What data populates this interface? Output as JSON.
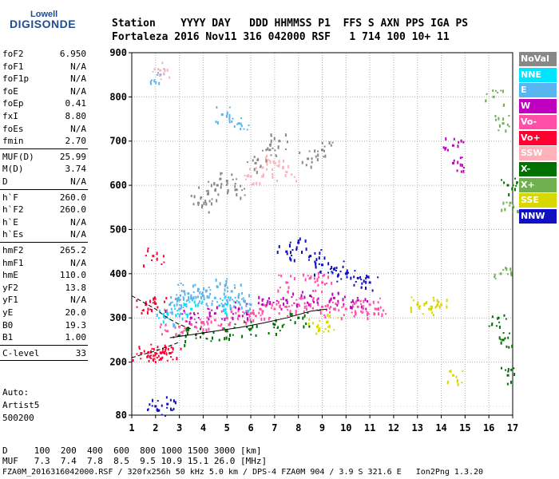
{
  "logo": {
    "line1": "Lowell",
    "line2": "DIGISONDE"
  },
  "header": {
    "line1": "Station    YYYY DAY   DDD HHMMSS P1  FFS S AXN PPS IGA PS",
    "line2": "Fortaleza 2016 Nov11 316 042000 RSF   1 714 100 10+ 11"
  },
  "params": {
    "group1": [
      [
        "foF2",
        "6.950"
      ],
      [
        "foF1",
        "N/A"
      ],
      [
        "foF1p",
        "N/A"
      ],
      [
        "foE",
        "N/A"
      ],
      [
        "foEp",
        "0.41"
      ],
      [
        "fxI",
        "8.80"
      ],
      [
        "foEs",
        "N/A"
      ],
      [
        "fmin",
        "2.70"
      ]
    ],
    "group2": [
      [
        "MUF(D)",
        "25.99"
      ],
      [
        "M(D)",
        "3.74"
      ],
      [
        "D",
        "N/A"
      ]
    ],
    "group3": [
      [
        "h`F",
        "260.0"
      ],
      [
        "h`F2",
        "260.0"
      ],
      [
        "h`E",
        "N/A"
      ],
      [
        "h`Es",
        "N/A"
      ]
    ],
    "group4": [
      [
        "hmF2",
        "265.2"
      ],
      [
        "hmF1",
        "N/A"
      ],
      [
        "hmE",
        "110.0"
      ],
      [
        "yF2",
        "13.8"
      ],
      [
        "yF1",
        "N/A"
      ],
      [
        "yE",
        "20.0"
      ],
      [
        "B0",
        "19.3"
      ],
      [
        "B1",
        "1.00"
      ]
    ],
    "group5": [
      [
        "C-level",
        "33"
      ]
    ]
  },
  "auto": {
    "line1": "Auto:",
    "line2": "Artist5",
    "line3": "500200"
  },
  "legend": [
    {
      "label": "NoVal",
      "bg": "#888888",
      "fg": "#ffffff"
    },
    {
      "label": "NNE",
      "bg": "#00e5ff",
      "fg": "#ffffff"
    },
    {
      "label": "E",
      "bg": "#5ab4f0",
      "fg": "#ffffff"
    },
    {
      "label": "W",
      "bg": "#c000c0",
      "fg": "#ffffff"
    },
    {
      "label": "Vo-",
      "bg": "#ff4fa8",
      "fg": "#ffffff"
    },
    {
      "label": "Vo+",
      "bg": "#ff0030",
      "fg": "#ffffff"
    },
    {
      "label": "SSW",
      "bg": "#ffb0b8",
      "fg": "#ffffff"
    },
    {
      "label": "X-",
      "bg": "#007000",
      "fg": "#ffffff"
    },
    {
      "label": "X+",
      "bg": "#70b050",
      "fg": "#ffffff"
    },
    {
      "label": "SSE",
      "bg": "#d8d800",
      "fg": "#ffffff"
    },
    {
      "label": "NNW",
      "bg": "#1010c0",
      "fg": "#ffffff"
    }
  ],
  "footer": {
    "line1": "D     100  200  400  600  800 1000 1500 3000 [km]",
    "line2": "MUF   7.3  7.4  7.8  8.5  9.5 10.9 15.1 26.0 [MHz]",
    "line3": "FZA0M_2016316042000.RSF / 320fx256h 50 kHz 5.0 km / DPS-4 FZA0M 904 / 3.9 S 321.6 E   Ion2Png 1.3.20"
  },
  "chart_data": {
    "type": "scatter",
    "title": "",
    "xlabel": "",
    "ylabel": "",
    "xlim": [
      1,
      17
    ],
    "ylim": [
      80,
      900
    ],
    "x_ticks": [
      1,
      2,
      3,
      4,
      5,
      6,
      7,
      8,
      9,
      10,
      11,
      12,
      13,
      14,
      15,
      16,
      17
    ],
    "y_ticks": [
      80,
      200,
      300,
      400,
      500,
      600,
      700,
      800,
      900
    ],
    "grid": true,
    "legend_position": "right",
    "series": [
      {
        "name": "E",
        "color": "#5ab4f0",
        "points": [
          [
            2.6,
            330
          ],
          [
            3.0,
            340
          ],
          [
            3.5,
            345
          ],
          [
            4.0,
            350
          ],
          [
            4.5,
            345
          ],
          [
            5.0,
            340
          ],
          [
            5.5,
            335
          ],
          [
            6.0,
            330
          ],
          [
            3.2,
            360
          ],
          [
            3.8,
            365
          ],
          [
            4.6,
            370
          ],
          [
            5.2,
            360
          ],
          [
            2.4,
            300
          ],
          [
            3.0,
            320
          ],
          [
            2.2,
            850
          ],
          [
            4.8,
            760
          ],
          [
            5.5,
            740
          ]
        ]
      },
      {
        "name": "Vo-",
        "color": "#ff4fa8",
        "points": [
          [
            2.5,
            270
          ],
          [
            3.0,
            280
          ],
          [
            3.5,
            285
          ],
          [
            4.0,
            290
          ],
          [
            4.5,
            295
          ],
          [
            5.0,
            300
          ],
          [
            5.5,
            305
          ],
          [
            6.0,
            310
          ],
          [
            6.5,
            315
          ],
          [
            7.0,
            320
          ],
          [
            7.5,
            325
          ],
          [
            8.0,
            330
          ],
          [
            8.5,
            330
          ],
          [
            9.0,
            325
          ],
          [
            9.5,
            320
          ],
          [
            10.0,
            320
          ],
          [
            10.5,
            325
          ],
          [
            11.0,
            330
          ],
          [
            11.3,
            320
          ],
          [
            7.5,
            380
          ],
          [
            8.5,
            390
          ],
          [
            9.0,
            380
          ]
        ]
      },
      {
        "name": "Vo+",
        "color": "#ff0030",
        "points": [
          [
            1.4,
            220
          ],
          [
            1.7,
            222
          ],
          [
            2.0,
            220
          ],
          [
            2.3,
            222
          ],
          [
            2.6,
            220
          ],
          [
            1.6,
            330
          ],
          [
            2.0,
            332
          ],
          [
            1.9,
            440
          ]
        ]
      },
      {
        "name": "W",
        "color": "#c000c0",
        "points": [
          [
            3.5,
            300
          ],
          [
            4.5,
            310
          ],
          [
            5.5,
            320
          ],
          [
            6.5,
            330
          ],
          [
            7.5,
            340
          ],
          [
            8.5,
            350
          ],
          [
            9.5,
            345
          ],
          [
            10.5,
            340
          ],
          [
            14.5,
            650
          ],
          [
            14.5,
            690
          ]
        ]
      },
      {
        "name": "X-",
        "color": "#007000",
        "points": [
          [
            3.0,
            260
          ],
          [
            4.0,
            265
          ],
          [
            5.0,
            270
          ],
          [
            6.0,
            275
          ],
          [
            7.0,
            285
          ],
          [
            8.0,
            300
          ],
          [
            16.4,
            300
          ],
          [
            16.6,
            250
          ],
          [
            16.8,
            600
          ],
          [
            16.8,
            170
          ]
        ]
      },
      {
        "name": "X+",
        "color": "#70b050",
        "points": [
          [
            16.2,
            800
          ],
          [
            16.6,
            740
          ],
          [
            16.9,
            560
          ],
          [
            16.5,
            400
          ]
        ]
      },
      {
        "name": "SSE",
        "color": "#d8d800",
        "points": [
          [
            13.0,
            330
          ],
          [
            13.5,
            320
          ],
          [
            14.0,
            330
          ],
          [
            8.8,
            280
          ],
          [
            9.2,
            290
          ],
          [
            14.5,
            170
          ]
        ]
      },
      {
        "name": "NNW",
        "color": "#1010c0",
        "points": [
          [
            7.5,
            450
          ],
          [
            8.0,
            470
          ],
          [
            8.5,
            440
          ],
          [
            9.0,
            420
          ],
          [
            9.5,
            410
          ],
          [
            10.0,
            400
          ],
          [
            10.5,
            390
          ],
          [
            11.0,
            380
          ],
          [
            2.0,
            100
          ],
          [
            2.5,
            105
          ]
        ]
      },
      {
        "name": "SSW",
        "color": "#ffb0b8",
        "points": [
          [
            6.0,
            620
          ],
          [
            6.5,
            640
          ],
          [
            7.0,
            650
          ],
          [
            7.5,
            630
          ],
          [
            2.2,
            860
          ]
        ]
      },
      {
        "name": "NNE",
        "color": "#00e5ff",
        "points": [
          [
            2.5,
            310
          ],
          [
            3.5,
            320
          ],
          [
            5.0,
            330
          ]
        ]
      },
      {
        "name": "NoVal",
        "color": "#888888",
        "points": [
          [
            3.8,
            560
          ],
          [
            4.2,
            580
          ],
          [
            4.6,
            600
          ],
          [
            5.0,
            610
          ],
          [
            5.4,
            590
          ],
          [
            6.2,
            650
          ],
          [
            6.8,
            680
          ],
          [
            7.2,
            700
          ],
          [
            8.4,
            660
          ],
          [
            9.0,
            680
          ]
        ]
      }
    ],
    "traces": [
      {
        "kind": "ionogram-trace",
        "color": "#000000",
        "points": [
          [
            2.6,
            255
          ],
          [
            3.5,
            262
          ],
          [
            4.5,
            270
          ],
          [
            5.5,
            278
          ],
          [
            6.5,
            288
          ],
          [
            7.5,
            300
          ],
          [
            8.5,
            315
          ],
          [
            9.2,
            320
          ]
        ]
      },
      {
        "kind": "profile-dashed",
        "color": "#000000",
        "points": [
          [
            1.0,
            350
          ],
          [
            1.5,
            335
          ],
          [
            2.0,
            320
          ],
          [
            2.5,
            300
          ],
          [
            3.0,
            285
          ],
          [
            3.5,
            275
          ]
        ]
      },
      {
        "kind": "profile-dashed",
        "color": "#000000",
        "points": [
          [
            1.0,
            210
          ],
          [
            1.5,
            218
          ],
          [
            2.0,
            225
          ],
          [
            2.5,
            235
          ],
          [
            3.0,
            245
          ]
        ]
      }
    ]
  }
}
